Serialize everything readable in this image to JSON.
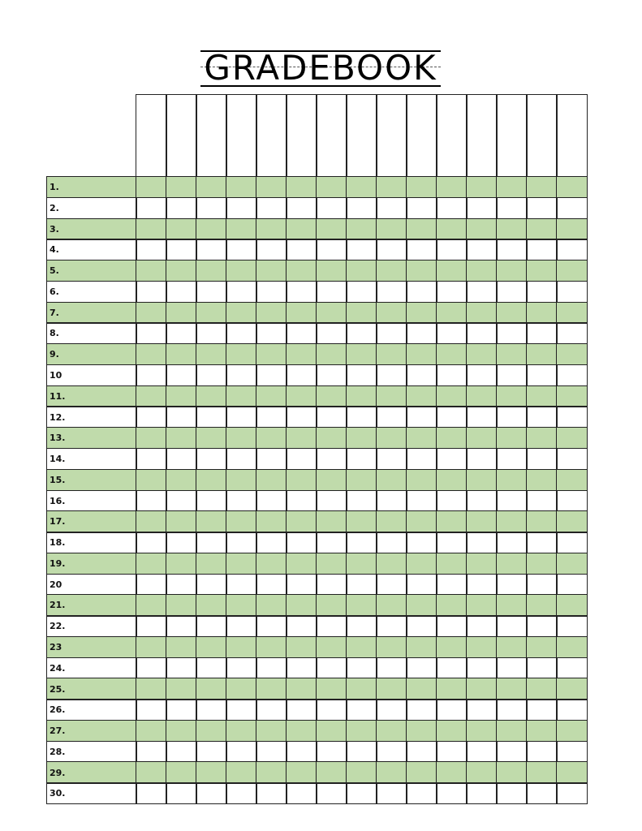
{
  "title": "GRADEBOOK",
  "colors": {
    "stripe": "#c0dbab",
    "line": "#222222"
  },
  "grade_columns": 15,
  "rows": [
    "1.",
    "2.",
    "3.",
    "4.",
    "5.",
    "6.",
    "7.",
    "8.",
    "9.",
    "10",
    "11.",
    "12.",
    "13.",
    "14.",
    "15.",
    "16.",
    "17.",
    "18.",
    "19.",
    "20",
    "21.",
    "22.",
    "23",
    "24.",
    "25.",
    "26.",
    "27.",
    "28.",
    "29.",
    "30."
  ]
}
